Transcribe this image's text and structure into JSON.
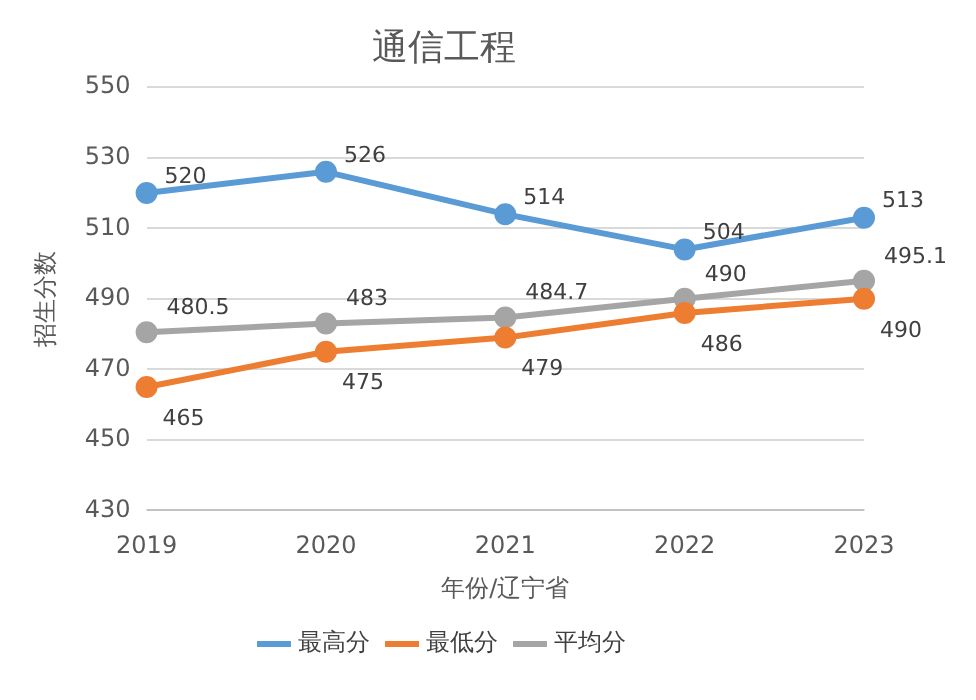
{
  "chart_data": {
    "type": "line",
    "title": "通信工程",
    "xlabel": "年份/辽宁省",
    "ylabel": "招生分数",
    "categories": [
      "2019",
      "2020",
      "2021",
      "2022",
      "2023"
    ],
    "series": [
      {
        "name": "最高分",
        "color": "#5b9bd5",
        "values": [
          520,
          526,
          514,
          504,
          513
        ]
      },
      {
        "name": "最低分",
        "color": "#ed7d31",
        "values": [
          465,
          475,
          479,
          486,
          490
        ]
      },
      {
        "name": "平均分",
        "color": "#a5a5a5",
        "values": [
          480.5,
          483,
          484.7,
          490,
          495.1
        ]
      }
    ],
    "ylim": [
      430,
      550
    ],
    "yticks": [
      430,
      450,
      470,
      490,
      510,
      530,
      550
    ],
    "grid": "y",
    "legend": "bottom",
    "marker": "circle",
    "line_style": "solid",
    "data_labels": true
  }
}
